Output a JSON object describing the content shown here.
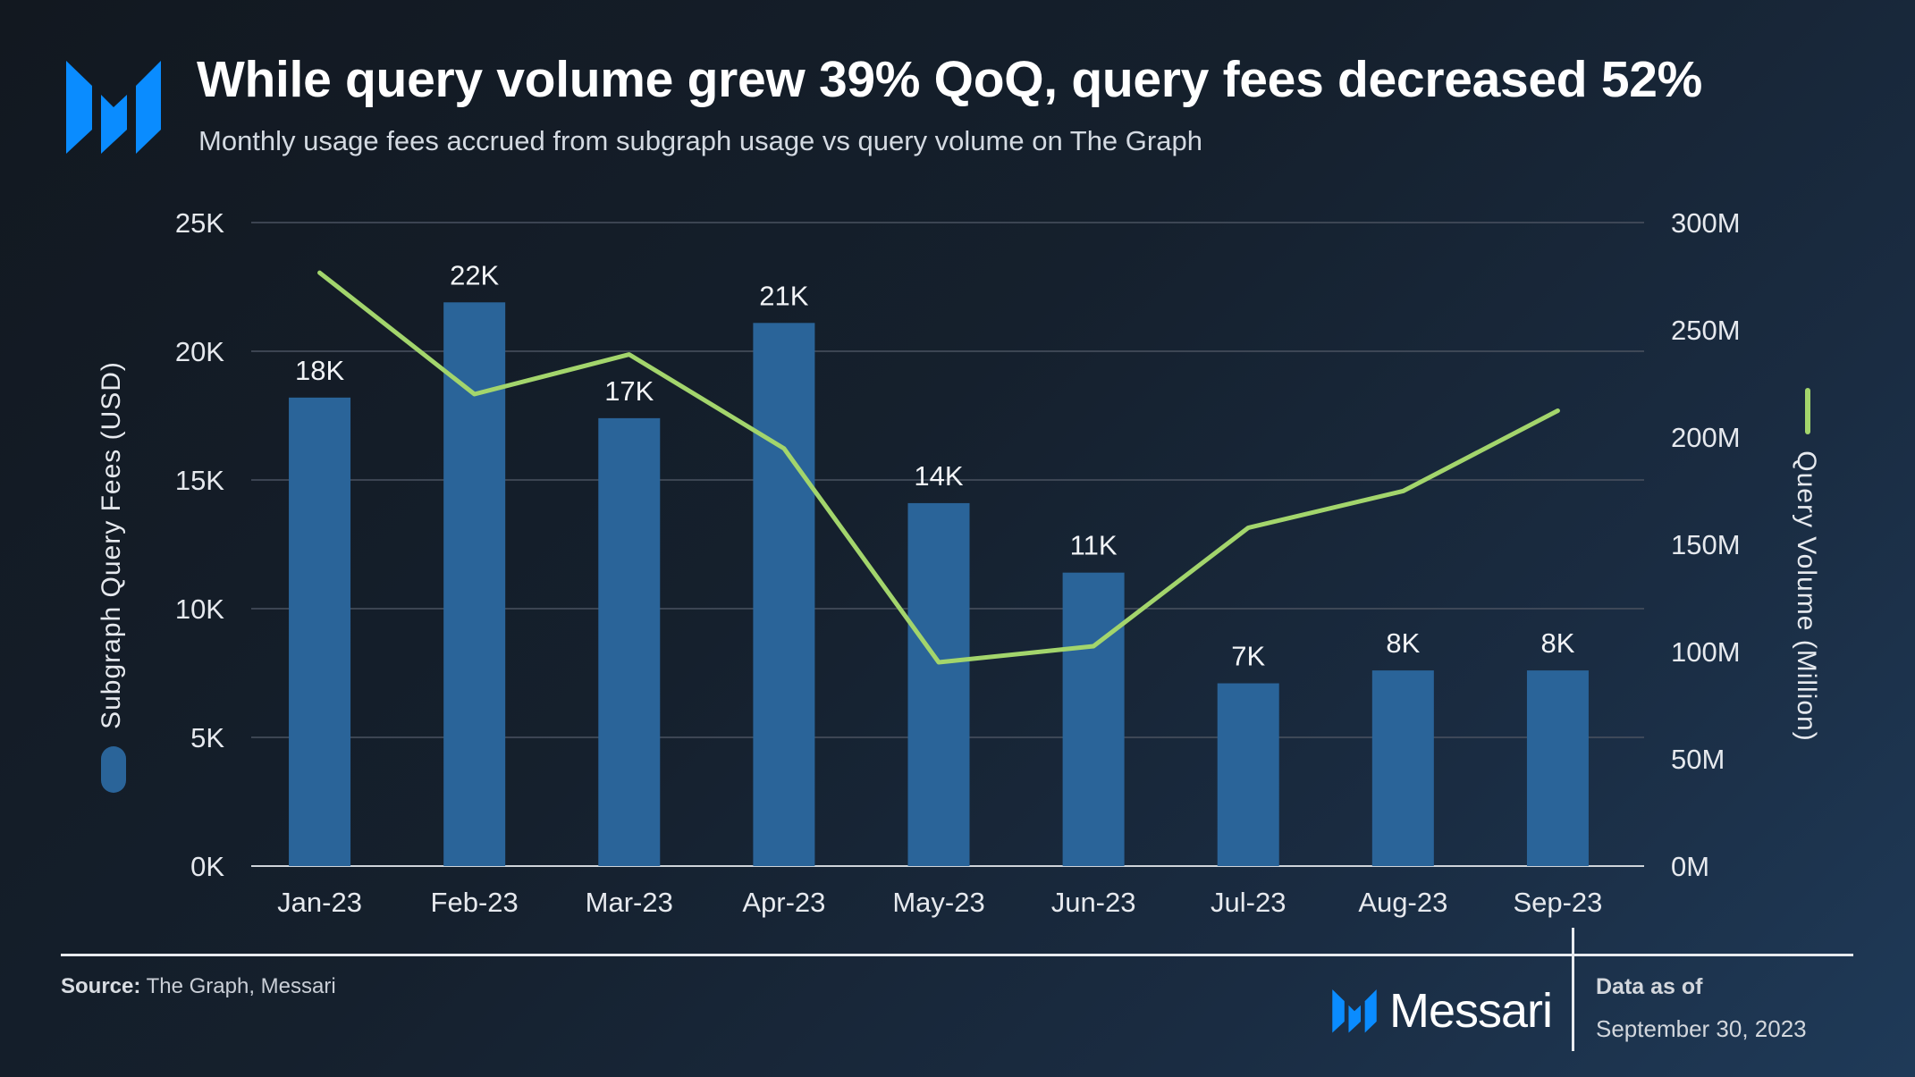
{
  "header": {
    "title": "While query volume grew 39% QoQ, query fees decreased 52%",
    "subtitle": "Monthly usage fees accrued from subgraph usage vs query volume on The Graph",
    "logo_icon": "messari-logo-icon"
  },
  "colors": {
    "bar": "#2a6499",
    "line": "#a3d56c",
    "logo": "#0a8cff",
    "grid": "#4a5260"
  },
  "chart_data": {
    "type": "bar+line",
    "title": "While query volume grew 39% QoQ, query fees decreased 52%",
    "subtitle": "Monthly usage fees accrued from subgraph usage vs query volume on The Graph",
    "categories": [
      "Jan-23",
      "Feb-23",
      "Mar-23",
      "Apr-23",
      "May-23",
      "Jun-23",
      "Jul-23",
      "Aug-23",
      "Sep-23"
    ],
    "series": [
      {
        "name": "Subgraph Query Fees (USD)",
        "type": "bar",
        "axis": "left",
        "values": [
          18200,
          21900,
          17400,
          21100,
          14100,
          11400,
          7100,
          7600,
          7600
        ],
        "data_labels": [
          "18K",
          "22K",
          "17K",
          "21K",
          "14K",
          "11K",
          "7K",
          "8K",
          "8K"
        ]
      },
      {
        "name": "Query Volume (Million)",
        "type": "line",
        "axis": "right",
        "values": [
          276.6,
          220,
          238.5,
          194.7,
          95,
          102.5,
          157.7,
          174.8,
          212.3
        ]
      }
    ],
    "ylabel": "Subgraph Query Fees (USD)",
    "ylim": [
      0,
      25000
    ],
    "yticks": [
      "0K",
      "5K",
      "10K",
      "15K",
      "20K",
      "25K"
    ],
    "y2label": "Query Volume (Million)",
    "y2lim": [
      0,
      300
    ],
    "y2ticks": [
      "0M",
      "50M",
      "100M",
      "150M",
      "200M",
      "250M",
      "300M"
    ],
    "grid": true,
    "legend": "axis-titles"
  },
  "footer": {
    "source_label": "Source:",
    "source_text": " The Graph, Messari",
    "brand": "Messari",
    "data_as_of_label": "Data as of",
    "data_as_of_date": "September 30, 2023"
  }
}
